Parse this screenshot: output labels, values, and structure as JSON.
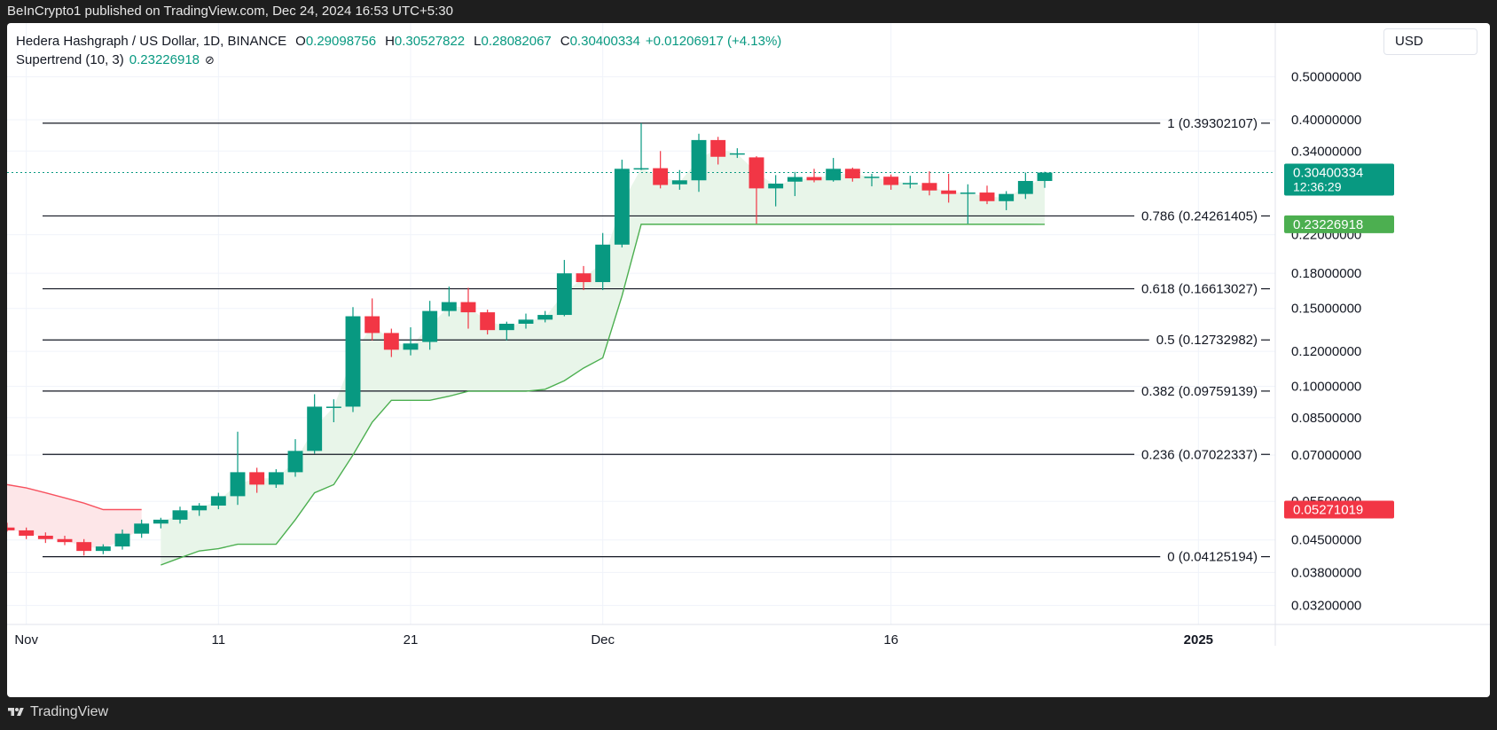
{
  "header": {
    "attribution": "BeInCrypto1 published on TradingView.com, Dec 24, 2024 16:53 UTC+5:30"
  },
  "legend": {
    "symbol": "Hedera Hashgraph / US Dollar, 1D, BINANCE",
    "o_key": "O",
    "o_val": "0.29098756",
    "h_key": "H",
    "h_val": "0.30527822",
    "l_key": "L",
    "l_val": "0.28082067",
    "c_key": "C",
    "c_val": "0.30400334",
    "change": "+0.01206917 (+4.13%)",
    "indicator": "Supertrend (10, 3)",
    "indicator_val": "0.23226918",
    "indicator_icon": "hidden-eye-icon"
  },
  "currency": "USD",
  "footer": {
    "brand": "TradingView"
  },
  "colors": {
    "up": "#089981",
    "down": "#f23645",
    "supertrend_up": "#4caf50",
    "supertrend_down": "#f7525f",
    "fill_up": "#e8f5e9",
    "fill_down": "#fde6e8"
  },
  "chart_data": {
    "type": "candlestick",
    "title": "Hedera Hashgraph / US Dollar, 1D, BINANCE",
    "y_scale": "log",
    "ylim": [
      0.029,
      0.55
    ],
    "y_ticks": [
      {
        "v": 0.5,
        "label": "0.50000000"
      },
      {
        "v": 0.4,
        "label": "0.40000000"
      },
      {
        "v": 0.34,
        "label": "0.34000000"
      },
      {
        "v": 0.22,
        "label": "0.22000000"
      },
      {
        "v": 0.18,
        "label": "0.18000000"
      },
      {
        "v": 0.15,
        "label": "0.15000000"
      },
      {
        "v": 0.12,
        "label": "0.12000000"
      },
      {
        "v": 0.1,
        "label": "0.10000000"
      },
      {
        "v": 0.085,
        "label": "0.08500000"
      },
      {
        "v": 0.07,
        "label": "0.07000000"
      },
      {
        "v": 0.055,
        "label": "0.05500000"
      },
      {
        "v": 0.045,
        "label": "0.04500000"
      },
      {
        "v": 0.038,
        "label": "0.03800000"
      },
      {
        "v": 0.032,
        "label": "0.03200000"
      }
    ],
    "x_ticks": [
      {
        "date": "2024-11-01",
        "label": "Nov"
      },
      {
        "date": "2024-11-11",
        "label": "11"
      },
      {
        "date": "2024-11-21",
        "label": "21"
      },
      {
        "date": "2024-12-01",
        "label": "Dec"
      },
      {
        "date": "2024-12-16",
        "label": "16"
      },
      {
        "date": "2025-01-01",
        "label": "2025"
      }
    ],
    "x_range": [
      "2024-10-31",
      "2025-01-05"
    ],
    "fib_levels": [
      {
        "ratio": "1",
        "price": 0.39302107,
        "label": "1 (0.39302107)"
      },
      {
        "ratio": "0.786",
        "price": 0.24261405,
        "label": "0.786 (0.24261405)"
      },
      {
        "ratio": "0.618",
        "price": 0.16613027,
        "label": "0.618 (0.16613027)"
      },
      {
        "ratio": "0.5",
        "price": 0.12732982,
        "label": "0.5 (0.12732982)"
      },
      {
        "ratio": "0.382",
        "price": 0.09759139,
        "label": "0.382 (0.09759139)"
      },
      {
        "ratio": "0.236",
        "price": 0.07022337,
        "label": "0.236 (0.07022337)"
      },
      {
        "ratio": "0",
        "price": 0.04125194,
        "label": "0 (0.04125194)"
      }
    ],
    "price_labels": [
      {
        "value": 0.30400334,
        "text": "0.30400334",
        "sub": "12:36:29",
        "color": "#089981"
      },
      {
        "value": 0.23226918,
        "text": "0.23226918",
        "sub": "",
        "color": "#4caf50"
      },
      {
        "value": 0.05271019,
        "text": "0.05271019",
        "sub": "",
        "color": "#f23645"
      }
    ],
    "last_price": 0.30400334,
    "candles": [
      {
        "date": "2024-10-31",
        "o": 0.048,
        "h": 0.0492,
        "l": 0.047,
        "c": 0.0473
      },
      {
        "date": "2024-11-01",
        "o": 0.0473,
        "h": 0.048,
        "l": 0.0452,
        "c": 0.046
      },
      {
        "date": "2024-11-02",
        "o": 0.046,
        "h": 0.0468,
        "l": 0.0443,
        "c": 0.0452
      },
      {
        "date": "2024-11-03",
        "o": 0.0452,
        "h": 0.046,
        "l": 0.0438,
        "c": 0.0445
      },
      {
        "date": "2024-11-04",
        "o": 0.0445,
        "h": 0.0452,
        "l": 0.0415,
        "c": 0.0425
      },
      {
        "date": "2024-11-05",
        "o": 0.0425,
        "h": 0.044,
        "l": 0.0418,
        "c": 0.0435
      },
      {
        "date": "2024-11-06",
        "o": 0.0435,
        "h": 0.0475,
        "l": 0.0428,
        "c": 0.0465
      },
      {
        "date": "2024-11-07",
        "o": 0.0465,
        "h": 0.05,
        "l": 0.0455,
        "c": 0.049
      },
      {
        "date": "2024-11-08",
        "o": 0.049,
        "h": 0.0505,
        "l": 0.0478,
        "c": 0.05
      },
      {
        "date": "2024-11-09",
        "o": 0.05,
        "h": 0.0535,
        "l": 0.049,
        "c": 0.0525
      },
      {
        "date": "2024-11-10",
        "o": 0.0525,
        "h": 0.0545,
        "l": 0.051,
        "c": 0.0538
      },
      {
        "date": "2024-11-11",
        "o": 0.0538,
        "h": 0.0575,
        "l": 0.0528,
        "c": 0.0565
      },
      {
        "date": "2024-11-12",
        "o": 0.0565,
        "h": 0.079,
        "l": 0.054,
        "c": 0.064
      },
      {
        "date": "2024-11-13",
        "o": 0.064,
        "h": 0.0655,
        "l": 0.0575,
        "c": 0.06
      },
      {
        "date": "2024-11-14",
        "o": 0.06,
        "h": 0.065,
        "l": 0.059,
        "c": 0.064
      },
      {
        "date": "2024-11-15",
        "o": 0.064,
        "h": 0.076,
        "l": 0.0625,
        "c": 0.0715
      },
      {
        "date": "2024-11-16",
        "o": 0.0715,
        "h": 0.096,
        "l": 0.0705,
        "c": 0.09
      },
      {
        "date": "2024-11-17",
        "o": 0.0895,
        "h": 0.0935,
        "l": 0.083,
        "c": 0.09
      },
      {
        "date": "2024-11-18",
        "o": 0.09,
        "h": 0.151,
        "l": 0.0875,
        "c": 0.144
      },
      {
        "date": "2024-11-19",
        "o": 0.144,
        "h": 0.158,
        "l": 0.127,
        "c": 0.132
      },
      {
        "date": "2024-11-20",
        "o": 0.132,
        "h": 0.135,
        "l": 0.1165,
        "c": 0.121
      },
      {
        "date": "2024-11-21",
        "o": 0.121,
        "h": 0.136,
        "l": 0.1175,
        "c": 0.125
      },
      {
        "date": "2024-11-22",
        "o": 0.126,
        "h": 0.156,
        "l": 0.121,
        "c": 0.148
      },
      {
        "date": "2024-11-23",
        "o": 0.148,
        "h": 0.168,
        "l": 0.144,
        "c": 0.155
      },
      {
        "date": "2024-11-24",
        "o": 0.155,
        "h": 0.167,
        "l": 0.135,
        "c": 0.147
      },
      {
        "date": "2024-11-25",
        "o": 0.147,
        "h": 0.149,
        "l": 0.131,
        "c": 0.134
      },
      {
        "date": "2024-11-26",
        "o": 0.134,
        "h": 0.14,
        "l": 0.127,
        "c": 0.1385
      },
      {
        "date": "2024-11-27",
        "o": 0.1385,
        "h": 0.146,
        "l": 0.135,
        "c": 0.1415
      },
      {
        "date": "2024-11-28",
        "o": 0.1415,
        "h": 0.148,
        "l": 0.1395,
        "c": 0.145
      },
      {
        "date": "2024-11-29",
        "o": 0.145,
        "h": 0.193,
        "l": 0.144,
        "c": 0.18
      },
      {
        "date": "2024-11-30",
        "o": 0.18,
        "h": 0.187,
        "l": 0.165,
        "c": 0.172
      },
      {
        "date": "2024-12-01",
        "o": 0.172,
        "h": 0.222,
        "l": 0.165,
        "c": 0.209
      },
      {
        "date": "2024-12-02",
        "o": 0.209,
        "h": 0.325,
        "l": 0.206,
        "c": 0.31
      },
      {
        "date": "2024-12-03",
        "o": 0.31,
        "h": 0.393,
        "l": 0.308,
        "c": 0.311
      },
      {
        "date": "2024-12-04",
        "o": 0.311,
        "h": 0.34,
        "l": 0.28,
        "c": 0.285
      },
      {
        "date": "2024-12-05",
        "o": 0.286,
        "h": 0.308,
        "l": 0.278,
        "c": 0.292
      },
      {
        "date": "2024-12-06",
        "o": 0.292,
        "h": 0.372,
        "l": 0.275,
        "c": 0.36
      },
      {
        "date": "2024-12-07",
        "o": 0.36,
        "h": 0.366,
        "l": 0.317,
        "c": 0.33
      },
      {
        "date": "2024-12-08",
        "o": 0.334,
        "h": 0.345,
        "l": 0.328,
        "c": 0.336
      },
      {
        "date": "2024-12-09",
        "o": 0.329,
        "h": 0.331,
        "l": 0.233,
        "c": 0.28
      },
      {
        "date": "2024-12-10",
        "o": 0.28,
        "h": 0.3,
        "l": 0.255,
        "c": 0.287
      },
      {
        "date": "2024-12-11",
        "o": 0.29,
        "h": 0.305,
        "l": 0.269,
        "c": 0.297
      },
      {
        "date": "2024-12-12",
        "o": 0.297,
        "h": 0.31,
        "l": 0.289,
        "c": 0.292
      },
      {
        "date": "2024-12-13",
        "o": 0.292,
        "h": 0.328,
        "l": 0.29,
        "c": 0.31
      },
      {
        "date": "2024-12-14",
        "o": 0.31,
        "h": 0.312,
        "l": 0.29,
        "c": 0.295
      },
      {
        "date": "2024-12-15",
        "o": 0.296,
        "h": 0.302,
        "l": 0.283,
        "c": 0.2975
      },
      {
        "date": "2024-12-16",
        "o": 0.2975,
        "h": 0.301,
        "l": 0.278,
        "c": 0.285
      },
      {
        "date": "2024-12-17",
        "o": 0.286,
        "h": 0.299,
        "l": 0.28,
        "c": 0.288
      },
      {
        "date": "2024-12-18",
        "o": 0.288,
        "h": 0.306,
        "l": 0.27,
        "c": 0.277
      },
      {
        "date": "2024-12-19",
        "o": 0.277,
        "h": 0.302,
        "l": 0.26,
        "c": 0.272
      },
      {
        "date": "2024-12-20",
        "o": 0.273,
        "h": 0.286,
        "l": 0.233,
        "c": 0.274
      },
      {
        "date": "2024-12-21",
        "o": 0.274,
        "h": 0.284,
        "l": 0.258,
        "c": 0.262
      },
      {
        "date": "2024-12-22",
        "o": 0.262,
        "h": 0.276,
        "l": 0.25,
        "c": 0.272
      },
      {
        "date": "2024-12-23",
        "o": 0.272,
        "h": 0.304,
        "l": 0.265,
        "c": 0.291
      },
      {
        "date": "2024-12-24",
        "o": 0.29098756,
        "h": 0.30527822,
        "l": 0.28082067,
        "c": 0.30400334
      }
    ],
    "supertrend_down": [
      {
        "date": "2024-10-31",
        "v": 0.06
      },
      {
        "date": "2024-11-01",
        "v": 0.059
      },
      {
        "date": "2024-11-02",
        "v": 0.0575
      },
      {
        "date": "2024-11-03",
        "v": 0.056
      },
      {
        "date": "2024-11-04",
        "v": 0.0545
      },
      {
        "date": "2024-11-05",
        "v": 0.0527
      },
      {
        "date": "2024-11-06",
        "v": 0.0527
      },
      {
        "date": "2024-11-07",
        "v": 0.0527
      }
    ],
    "supertrend_up": [
      {
        "date": "2024-11-08",
        "v": 0.0395
      },
      {
        "date": "2024-11-09",
        "v": 0.041
      },
      {
        "date": "2024-11-10",
        "v": 0.0425
      },
      {
        "date": "2024-11-11",
        "v": 0.043
      },
      {
        "date": "2024-11-12",
        "v": 0.044
      },
      {
        "date": "2024-11-13",
        "v": 0.044
      },
      {
        "date": "2024-11-14",
        "v": 0.044
      },
      {
        "date": "2024-11-15",
        "v": 0.05
      },
      {
        "date": "2024-11-16",
        "v": 0.0575
      },
      {
        "date": "2024-11-17",
        "v": 0.06
      },
      {
        "date": "2024-11-18",
        "v": 0.07
      },
      {
        "date": "2024-11-19",
        "v": 0.083
      },
      {
        "date": "2024-11-20",
        "v": 0.093
      },
      {
        "date": "2024-11-21",
        "v": 0.093
      },
      {
        "date": "2024-11-22",
        "v": 0.093
      },
      {
        "date": "2024-11-23",
        "v": 0.095
      },
      {
        "date": "2024-11-24",
        "v": 0.0975
      },
      {
        "date": "2024-11-25",
        "v": 0.0975
      },
      {
        "date": "2024-11-26",
        "v": 0.0975
      },
      {
        "date": "2024-11-27",
        "v": 0.0975
      },
      {
        "date": "2024-11-28",
        "v": 0.0985
      },
      {
        "date": "2024-11-29",
        "v": 0.103
      },
      {
        "date": "2024-11-30",
        "v": 0.11
      },
      {
        "date": "2024-12-01",
        "v": 0.116
      },
      {
        "date": "2024-12-02",
        "v": 0.16
      },
      {
        "date": "2024-12-03",
        "v": 0.2323
      },
      {
        "date": "2024-12-04",
        "v": 0.2323
      },
      {
        "date": "2024-12-05",
        "v": 0.2323
      },
      {
        "date": "2024-12-06",
        "v": 0.2323
      },
      {
        "date": "2024-12-07",
        "v": 0.2323
      },
      {
        "date": "2024-12-08",
        "v": 0.2323
      },
      {
        "date": "2024-12-09",
        "v": 0.2323
      },
      {
        "date": "2024-12-10",
        "v": 0.2323
      },
      {
        "date": "2024-12-11",
        "v": 0.2323
      },
      {
        "date": "2024-12-12",
        "v": 0.2323
      },
      {
        "date": "2024-12-13",
        "v": 0.2323
      },
      {
        "date": "2024-12-14",
        "v": 0.2323
      },
      {
        "date": "2024-12-15",
        "v": 0.2323
      },
      {
        "date": "2024-12-16",
        "v": 0.2323
      },
      {
        "date": "2024-12-17",
        "v": 0.2323
      },
      {
        "date": "2024-12-18",
        "v": 0.2323
      },
      {
        "date": "2024-12-19",
        "v": 0.2323
      },
      {
        "date": "2024-12-20",
        "v": 0.2323
      },
      {
        "date": "2024-12-21",
        "v": 0.2323
      },
      {
        "date": "2024-12-22",
        "v": 0.2323
      },
      {
        "date": "2024-12-23",
        "v": 0.2323
      },
      {
        "date": "2024-12-24",
        "v": 0.23226918
      }
    ]
  }
}
